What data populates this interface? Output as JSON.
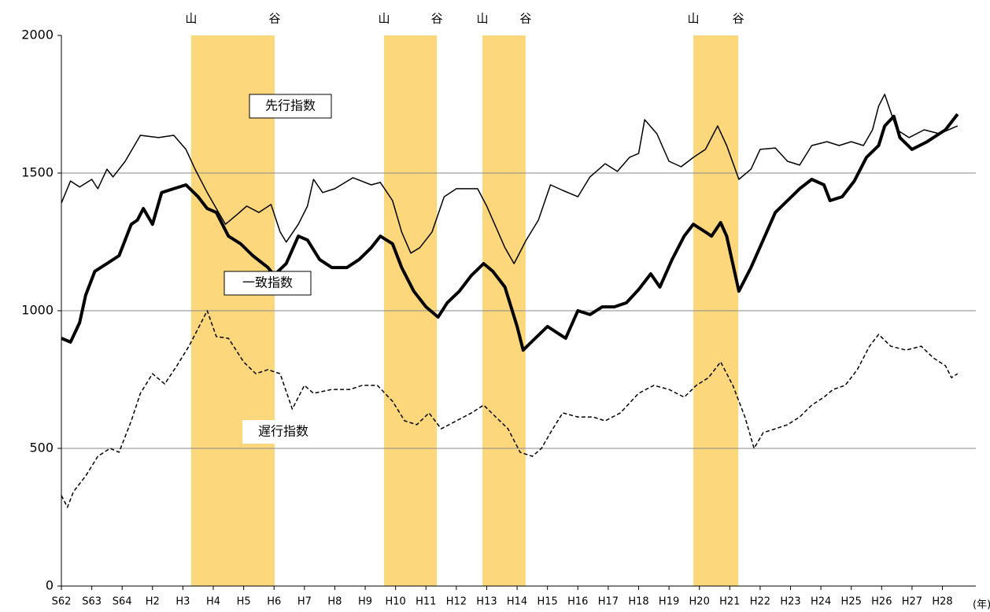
{
  "chart_data": {
    "type": "line",
    "xlim": [
      1987,
      2017.1
    ],
    "ylim": [
      0,
      2000
    ],
    "yticks": [
      0,
      500,
      1000,
      1500,
      2000
    ],
    "grid": true,
    "xticks": [
      {
        "value": 1987,
        "label": "S62"
      },
      {
        "value": 1988,
        "label": "S63"
      },
      {
        "value": 1989,
        "label": "S64"
      },
      {
        "value": 1990,
        "label": "H2"
      },
      {
        "value": 1991,
        "label": "H3"
      },
      {
        "value": 1992,
        "label": "H4"
      },
      {
        "value": 1993,
        "label": "H5"
      },
      {
        "value": 1994,
        "label": "H6"
      },
      {
        "value": 1995,
        "label": "H7"
      },
      {
        "value": 1996,
        "label": "H8"
      },
      {
        "value": 1997,
        "label": "H9"
      },
      {
        "value": 1998,
        "label": "H10"
      },
      {
        "value": 1999,
        "label": "H11"
      },
      {
        "value": 2000,
        "label": "H12"
      },
      {
        "value": 2001,
        "label": "H13"
      },
      {
        "value": 2002,
        "label": "H14"
      },
      {
        "value": 2003,
        "label": "H15"
      },
      {
        "value": 2004,
        "label": "H16"
      },
      {
        "value": 2005,
        "label": "H17"
      },
      {
        "value": 2006,
        "label": "H18"
      },
      {
        "value": 2007,
        "label": "H19"
      },
      {
        "value": 2008,
        "label": "H20"
      },
      {
        "value": 2009,
        "label": "H21"
      },
      {
        "value": 2010,
        "label": "H22"
      },
      {
        "value": 2011,
        "label": "H23"
      },
      {
        "value": 2012,
        "label": "H24"
      },
      {
        "value": 2013,
        "label": "H25"
      },
      {
        "value": 2014,
        "label": "H26"
      },
      {
        "value": 2015,
        "label": "H27"
      },
      {
        "value": 2016,
        "label": "H28"
      }
    ],
    "xlabel": "(年)",
    "shading_color": "#fdd77c",
    "shading": [
      {
        "from": 1991.27,
        "to": 1994.02,
        "peak_label": "山",
        "trough_label": "谷"
      },
      {
        "from": 1997.62,
        "to": 1999.36,
        "peak_label": "山",
        "trough_label": "谷"
      },
      {
        "from": 2000.86,
        "to": 2002.28,
        "peak_label": "山",
        "trough_label": "谷"
      },
      {
        "from": 2007.8,
        "to": 2009.28,
        "peak_label": "山",
        "trough_label": "谷"
      }
    ],
    "series": [
      {
        "name": "先行指数",
        "color": "#000000",
        "width": 1.5,
        "dash": false,
        "x": [
          1987.0,
          1987.3,
          1987.6,
          1988.0,
          1988.2,
          1988.5,
          1988.7,
          1989.1,
          1989.6,
          1990.2,
          1990.7,
          1991.1,
          1991.4,
          1991.8,
          1992.1,
          1992.4,
          1992.8,
          1993.1,
          1993.5,
          1993.9,
          1994.2,
          1994.4,
          1994.8,
          1995.1,
          1995.3,
          1995.6,
          1996.0,
          1996.6,
          1997.2,
          1997.5,
          1997.9,
          1998.2,
          1998.5,
          1998.8,
          1999.2,
          1999.6,
          2000.0,
          2000.7,
          2001.0,
          2001.6,
          2001.9,
          2002.3,
          2002.7,
          2003.1,
          2003.5,
          2004.0,
          2004.4,
          2004.9,
          2005.3,
          2005.7,
          2006.0,
          2006.2,
          2006.6,
          2007.0,
          2007.4,
          2007.8,
          2008.2,
          2008.6,
          2008.9,
          2009.3,
          2009.7,
          2010.0,
          2010.5,
          2010.9,
          2011.3,
          2011.7,
          2012.2,
          2012.6,
          2013.0,
          2013.4,
          2013.7,
          2013.9,
          2014.1,
          2014.5,
          2014.9,
          2015.4,
          2015.9,
          2016.5
        ],
        "values": [
          1391,
          1471,
          1449,
          1477,
          1443,
          1514,
          1486,
          1543,
          1637,
          1629,
          1637,
          1586,
          1514,
          1429,
          1371,
          1314,
          1351,
          1380,
          1357,
          1386,
          1286,
          1249,
          1314,
          1380,
          1477,
          1429,
          1443,
          1483,
          1457,
          1466,
          1400,
          1286,
          1209,
          1229,
          1286,
          1414,
          1443,
          1443,
          1380,
          1229,
          1171,
          1257,
          1329,
          1457,
          1437,
          1414,
          1486,
          1534,
          1506,
          1557,
          1571,
          1694,
          1643,
          1543,
          1523,
          1557,
          1586,
          1671,
          1600,
          1477,
          1514,
          1586,
          1591,
          1543,
          1529,
          1600,
          1614,
          1600,
          1614,
          1600,
          1657,
          1743,
          1786,
          1657,
          1629,
          1657,
          1643,
          1671
        ]
      },
      {
        "name": "一致指数",
        "color": "#000000",
        "width": 4,
        "dash": false,
        "x": [
          1987.0,
          1987.3,
          1987.6,
          1987.8,
          1988.1,
          1988.5,
          1988.9,
          1989.3,
          1989.5,
          1989.7,
          1990.0,
          1990.3,
          1990.7,
          1991.1,
          1991.5,
          1991.8,
          1992.1,
          1992.5,
          1992.9,
          1993.3,
          1993.8,
          1994.0,
          1994.4,
          1994.8,
          1995.1,
          1995.5,
          1995.9,
          1996.4,
          1996.8,
          1997.2,
          1997.5,
          1997.9,
          1998.2,
          1998.6,
          1999.0,
          1999.4,
          1999.7,
          2000.1,
          2000.5,
          2000.9,
          2001.2,
          2001.6,
          2002.0,
          2002.2,
          2002.6,
          2003.0,
          2003.4,
          2003.6,
          2004.0,
          2004.4,
          2004.8,
          2005.2,
          2005.6,
          2006.0,
          2006.4,
          2006.7,
          2007.1,
          2007.5,
          2007.8,
          2008.2,
          2008.4,
          2008.7,
          2008.9,
          2009.3,
          2009.7,
          2010.1,
          2010.5,
          2010.9,
          2011.3,
          2011.7,
          2012.1,
          2012.3,
          2012.7,
          2013.1,
          2013.5,
          2013.9,
          2014.1,
          2014.4,
          2014.6,
          2015.0,
          2015.5,
          2016.1,
          2016.5
        ],
        "values": [
          900,
          886,
          957,
          1057,
          1143,
          1171,
          1200,
          1314,
          1329,
          1371,
          1314,
          1429,
          1443,
          1457,
          1414,
          1371,
          1357,
          1271,
          1243,
          1200,
          1157,
          1129,
          1171,
          1271,
          1257,
          1186,
          1157,
          1157,
          1186,
          1229,
          1271,
          1243,
          1157,
          1071,
          1014,
          977,
          1029,
          1071,
          1129,
          1171,
          1143,
          1086,
          943,
          857,
          900,
          943,
          914,
          900,
          1000,
          986,
          1014,
          1014,
          1029,
          1077,
          1134,
          1086,
          1186,
          1271,
          1314,
          1286,
          1271,
          1320,
          1271,
          1071,
          1157,
          1257,
          1357,
          1400,
          1443,
          1477,
          1457,
          1400,
          1414,
          1471,
          1557,
          1600,
          1671,
          1706,
          1629,
          1586,
          1614,
          1657,
          1714
        ]
      },
      {
        "name": "遅行指数",
        "color": "#000000",
        "width": 1.5,
        "dash": true,
        "x": [
          1987.0,
          1987.2,
          1987.4,
          1987.8,
          1988.2,
          1988.6,
          1988.9,
          1989.3,
          1989.6,
          1990.0,
          1990.4,
          1990.8,
          1991.2,
          1991.6,
          1991.8,
          1992.1,
          1992.5,
          1993.0,
          1993.4,
          1993.8,
          1994.2,
          1994.6,
          1995.0,
          1995.3,
          1995.9,
          1996.5,
          1996.9,
          1997.4,
          1997.9,
          1998.3,
          1998.7,
          1999.1,
          1999.5,
          2000.0,
          2000.5,
          2000.9,
          2001.3,
          2001.7,
          2002.1,
          2002.5,
          2002.8,
          2003.1,
          2003.5,
          2004.0,
          2004.5,
          2004.9,
          2005.4,
          2006.0,
          2006.5,
          2007.0,
          2007.5,
          2007.9,
          2008.3,
          2008.7,
          2009.1,
          2009.5,
          2009.8,
          2010.1,
          2010.5,
          2010.9,
          2011.3,
          2011.7,
          2012.1,
          2012.4,
          2012.8,
          2013.2,
          2013.6,
          2013.9,
          2014.3,
          2014.8,
          2015.3,
          2015.7,
          2016.1,
          2016.3,
          2016.5
        ],
        "values": [
          329,
          286,
          343,
          400,
          471,
          500,
          486,
          600,
          700,
          771,
          734,
          800,
          871,
          957,
          1000,
          906,
          900,
          814,
          771,
          786,
          771,
          643,
          729,
          700,
          714,
          714,
          729,
          729,
          671,
          600,
          586,
          629,
          571,
          600,
          629,
          657,
          614,
          571,
          486,
          471,
          500,
          557,
          629,
          614,
          614,
          600,
          629,
          700,
          729,
          714,
          686,
          729,
          757,
          814,
          729,
          614,
          500,
          557,
          571,
          586,
          614,
          657,
          686,
          714,
          729,
          786,
          871,
          914,
          871,
          857,
          871,
          829,
          800,
          757,
          771
        ]
      }
    ]
  }
}
